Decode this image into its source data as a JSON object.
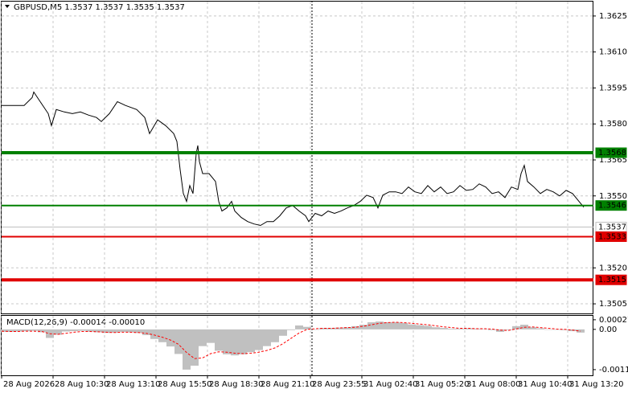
{
  "chart_data": [
    {
      "type": "line",
      "title": "GBPUSD,M5  1.3537 1.3537 1.3535 1.3537",
      "color": "#000000",
      "x": [
        0,
        8,
        14,
        19,
        20,
        24,
        29,
        31,
        34,
        39,
        44,
        49,
        54,
        59,
        62,
        67,
        72,
        77,
        84,
        89,
        92,
        97,
        102,
        107,
        109,
        111,
        113,
        115,
        117,
        119,
        121,
        122,
        123,
        125,
        129,
        133,
        135,
        137,
        140,
        143,
        145,
        149,
        153,
        157,
        161,
        165,
        169,
        173,
        177,
        181,
        185,
        189,
        191,
        195,
        199,
        203,
        207,
        211,
        215,
        219,
        223,
        227,
        231,
        234,
        237,
        241,
        245,
        249,
        253,
        257,
        261,
        265,
        269,
        273,
        277,
        281,
        285,
        289,
        293,
        297,
        301,
        305,
        309,
        313,
        317,
        321,
        323,
        325,
        327,
        331,
        335,
        339,
        343,
        347,
        351,
        355,
        359,
        362
      ],
      "series": [
        {
          "color": "#000000",
          "values": [
            1.35877,
            1.35877,
            1.35877,
            1.3591,
            1.35933,
            1.35893,
            1.35843,
            1.35793,
            1.3586,
            1.3585,
            1.35843,
            1.3585,
            1.35837,
            1.35827,
            1.3581,
            1.35843,
            1.35893,
            1.35877,
            1.3586,
            1.35827,
            1.3576,
            1.35817,
            1.35793,
            1.3576,
            1.35727,
            1.3561,
            1.3551,
            1.35477,
            1.35543,
            1.3551,
            1.35677,
            1.3571,
            1.35643,
            1.35593,
            1.35593,
            1.3556,
            1.35477,
            1.35437,
            1.3545,
            1.35477,
            1.35437,
            1.3541,
            1.35393,
            1.35383,
            1.35377,
            1.35393,
            1.35393,
            1.35417,
            1.3545,
            1.3546,
            1.35437,
            1.35417,
            1.35393,
            1.35427,
            1.35417,
            1.35437,
            1.35427,
            1.35437,
            1.3545,
            1.3546,
            1.35477,
            1.35503,
            1.35493,
            1.3545,
            1.35503,
            1.35517,
            1.35517,
            1.3551,
            1.35537,
            1.35517,
            1.3551,
            1.35543,
            1.35517,
            1.35537,
            1.3551,
            1.35517,
            1.35543,
            1.35523,
            1.35527,
            1.3555,
            1.35537,
            1.3551,
            1.35517,
            1.35493,
            1.35537,
            1.35527,
            1.35593,
            1.35627,
            1.3556,
            1.35537,
            1.3551,
            1.35527,
            1.35517,
            1.355,
            1.35523,
            1.3551,
            1.35477,
            1.35453
          ]
        }
      ],
      "xlim": [
        0,
        368
      ],
      "xticks": [
        {
          "value": 0,
          "label": "28 Aug 2026"
        },
        {
          "value": 32,
          "label": "28 Aug 10:30"
        },
        {
          "value": 64,
          "label": "28 Aug 13:10"
        },
        {
          "value": 96,
          "label": "28 Aug 15:50"
        },
        {
          "value": 128,
          "label": "28 Aug 18:30"
        },
        {
          "value": 160,
          "label": "28 Aug 21:10"
        },
        {
          "value": 192,
          "label": "28 Aug 23:55"
        },
        {
          "value": 224,
          "label": "31 Aug 02:40"
        },
        {
          "value": 256,
          "label": "31 Aug 05:20"
        },
        {
          "value": 288,
          "label": "31 Aug 08:00"
        },
        {
          "value": 320,
          "label": "31 Aug 10:40"
        },
        {
          "value": 352,
          "label": "31 Aug 13:20"
        }
      ],
      "ylim": [
        1.3501,
        1.3631
      ],
      "yticks": [
        1.3625,
        {
          "value": 1.361,
          "label": "1.3610"
        },
        1.3595,
        {
          "value": 1.358,
          "label": "1.3580"
        },
        1.3565,
        {
          "value": 1.355,
          "label": "1.3550"
        },
        {
          "value": 1.352,
          "label": "1.3520"
        },
        1.3505
      ],
      "grid": true,
      "levels": [
        {
          "value": 1.3568,
          "color": "#008000",
          "width": 4,
          "label_color": "#ffffff"
        },
        {
          "value": 1.3546,
          "color": "#008000",
          "width": 2,
          "label_color": "#ffffff"
        },
        {
          "value": 1.3537,
          "color": "#c0c0c0",
          "width": 1,
          "label_color": "#000000"
        },
        {
          "value": 1.3533,
          "color": "#e00000",
          "width": 2,
          "label_color": "#ffffff"
        },
        {
          "value": 1.3515,
          "color": "#e00000",
          "width": 4,
          "label_color": "#ffffff"
        }
      ]
    },
    {
      "type": "macd",
      "title": "MACD(12,26,9) -0.00014 -0.00010",
      "x": [
        0,
        5,
        10,
        15,
        20,
        25,
        30,
        35,
        40,
        45,
        50,
        55,
        60,
        65,
        70,
        75,
        80,
        85,
        90,
        95,
        100,
        105,
        110,
        115,
        120,
        125,
        130,
        135,
        140,
        145,
        150,
        155,
        160,
        165,
        170,
        175,
        180,
        185,
        190,
        195,
        200,
        205,
        210,
        215,
        220,
        225,
        230,
        235,
        240,
        245,
        250,
        255,
        260,
        265,
        270,
        275,
        280,
        285,
        290,
        295,
        300,
        305,
        310,
        315,
        320,
        325,
        330,
        335,
        340,
        345,
        350,
        355,
        360
      ],
      "series": [
        {
          "kind": "bar",
          "color": "#c0c0c0",
          "values": [
            -7e-05,
            -7e-05,
            -6e-05,
            -5e-05,
            -4e-05,
            -8e-05,
            -0.00024,
            -0.00015,
            -6e-05,
            -5e-05,
            -4e-05,
            -6e-05,
            -8e-05,
            -0.0001,
            -9e-05,
            -7e-05,
            -8e-05,
            -0.0001,
            -0.00016,
            -0.00027,
            -0.00036,
            -0.00048,
            -0.00069,
            -0.00113,
            -0.00102,
            -0.00047,
            -0.00038,
            -0.0006,
            -0.0007,
            -0.00073,
            -0.0007,
            -0.00064,
            -0.00058,
            -0.00047,
            -0.00036,
            -0.00018,
            -2e-05,
            0.00011,
            7e-05,
            0,
            4e-05,
            4e-05,
            5e-05,
            6e-05,
            9e-05,
            0.00013,
            0.0002,
            0.00022,
            0.0002,
            0.0002,
            0.00018,
            0.00014,
            0.00012,
            0.0001,
            6e-05,
            4e-05,
            2e-05,
            2e-05,
            3e-05,
            2e-05,
            1e-05,
            -2e-05,
            -7e-05,
            -2e-05,
            9e-05,
            0.00013,
            6e-05,
            3e-05,
            0,
            -1e-05,
            -2e-05,
            -5e-05,
            -9e-05
          ]
        },
        {
          "kind": "line",
          "color": "#ff0000",
          "values": [
            -5e-05,
            -6e-05,
            -6e-05,
            -5e-05,
            -5e-05,
            -6e-05,
            -0.00012,
            -0.00014,
            -0.00011,
            -8e-05,
            -6e-05,
            -6e-05,
            -7e-05,
            -8e-05,
            -9e-05,
            -8e-05,
            -8e-05,
            -9e-05,
            -0.00011,
            -0.00016,
            -0.00022,
            -0.0003,
            -0.00042,
            -0.00065,
            -0.00082,
            -0.0008,
            -0.00068,
            -0.00063,
            -0.00064,
            -0.00067,
            -0.00068,
            -0.00067,
            -0.00064,
            -0.00059,
            -0.00052,
            -0.0004,
            -0.00025,
            -0.0001,
            0,
            2e-05,
            3e-05,
            3e-05,
            4e-05,
            5e-05,
            6e-05,
            9e-05,
            0.00013,
            0.00017,
            0.00019,
            0.0002,
            0.00019,
            0.00017,
            0.00015,
            0.00013,
            0.0001,
            7e-05,
            5e-05,
            3e-05,
            3e-05,
            2e-05,
            2e-05,
            1e-05,
            -2e-05,
            -3e-05,
            1e-05,
            6e-05,
            7e-05,
            5e-05,
            3e-05,
            1e-05,
            0,
            -2e-05,
            -5e-05
          ]
        }
      ],
      "xlim": [
        0,
        368
      ],
      "ylim": [
        -0.00129,
        0.00038
      ],
      "yticks": [
        0.00027,
        {
          "value": 0,
          "label": "0.00"
        },
        -0.00113
      ]
    }
  ]
}
